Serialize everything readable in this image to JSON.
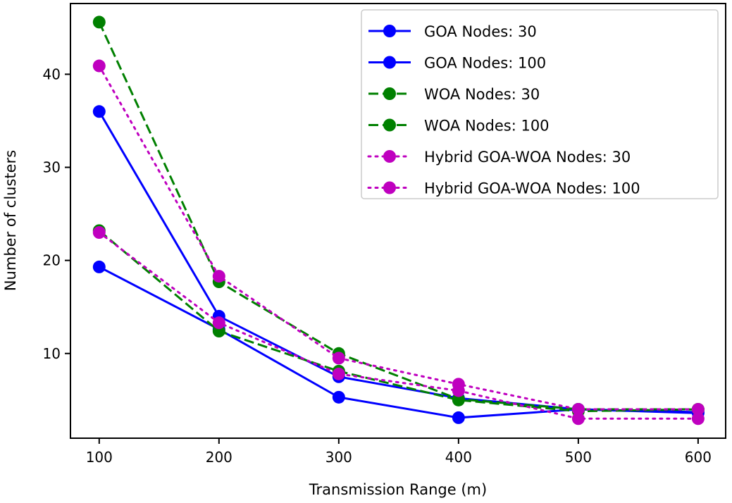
{
  "chart_data": {
    "type": "line",
    "title": "",
    "xlabel": "Transmission Range (m)",
    "ylabel": "Number of clusters",
    "x": [
      100,
      200,
      300,
      400,
      500,
      600
    ],
    "xticks": [
      "100",
      "200",
      "300",
      "400",
      "500",
      "600"
    ],
    "yticks": [
      "10",
      "20",
      "30",
      "40"
    ],
    "xlim": [
      76,
      623
    ],
    "ylim": [
      0.9,
      47.6
    ],
    "grid": false,
    "legend_position": "top-right",
    "series": [
      {
        "name": "GOA Nodes: 30",
        "color": "#0000ff",
        "style": "solid",
        "values": [
          19.3,
          12.6,
          5.3,
          3.1,
          4.0,
          3.7
        ]
      },
      {
        "name": "GOA Nodes: 100",
        "color": "#0000ff",
        "style": "solid",
        "values": [
          36.0,
          14.0,
          7.5,
          5.2,
          4.0,
          3.6
        ]
      },
      {
        "name": "WOA Nodes: 30",
        "color": "#008000",
        "style": "dashed",
        "values": [
          23.2,
          12.4,
          8.1,
          5.0,
          3.8,
          4.0
        ]
      },
      {
        "name": "WOA Nodes: 100",
        "color": "#008000",
        "style": "dashed",
        "values": [
          45.6,
          17.7,
          10.0,
          5.1,
          4.0,
          4.0
        ]
      },
      {
        "name": "Hybrid GOA-WOA Nodes: 30",
        "color": "#bf00bf",
        "style": "dotted",
        "values": [
          23.0,
          13.3,
          7.8,
          6.0,
          3.0,
          3.0
        ]
      },
      {
        "name": "Hybrid GOA-WOA Nodes: 100",
        "color": "#bf00bf",
        "style": "dotted",
        "values": [
          40.9,
          18.3,
          9.5,
          6.7,
          4.0,
          4.0
        ]
      }
    ]
  }
}
